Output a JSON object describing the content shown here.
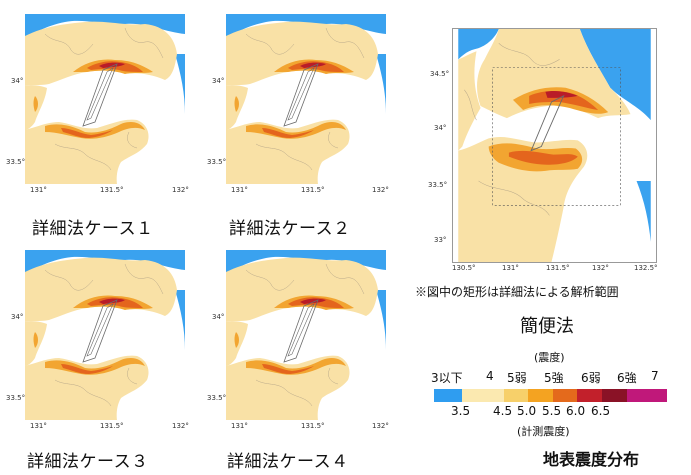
{
  "cases": [
    {
      "label": "詳細法ケース１"
    },
    {
      "label": "詳細法ケース２"
    },
    {
      "label": "詳細法ケース３"
    },
    {
      "label": "詳細法ケース４"
    }
  ],
  "small_map": {
    "lat_ticks": [
      "34°",
      "33.5°"
    ],
    "lon_ticks": [
      "131°",
      "131.5°",
      "132°"
    ]
  },
  "simple_map": {
    "lat_ticks": [
      "34.5°",
      "34°",
      "33.5°",
      "33°"
    ],
    "lon_ticks": [
      "130.5°",
      "131°",
      "131.5°",
      "132°",
      "132.5°"
    ],
    "note": "※図中の矩形は詳細法による解析範囲",
    "title": "簡便法"
  },
  "legend": {
    "title_top": "(震度)",
    "intensity_labels": [
      "3以下",
      "4",
      "5弱",
      "5強",
      "6弱",
      "6強",
      "7"
    ],
    "measured_values": [
      "3.5",
      "4.5",
      "5.0",
      "5.5",
      "6.0",
      "6.5"
    ],
    "title_bottom": "(計測震度)",
    "colors": [
      "#2f9df0",
      "#fbe9b0",
      "#f7d06a",
      "#f4a321",
      "#e46a1c",
      "#c2202b",
      "#8a1226",
      "#c0187a"
    ]
  },
  "distribution_title": "地表震度分布"
}
